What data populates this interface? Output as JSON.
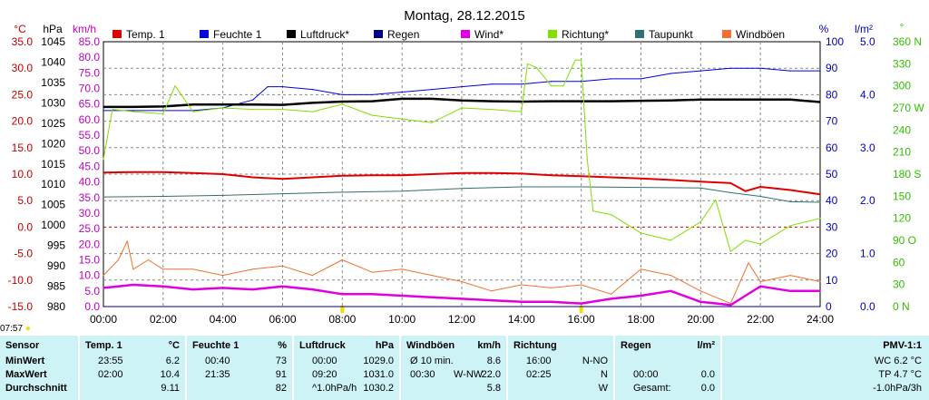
{
  "chart_data": {
    "type": "line",
    "title": "Montag, 28.12.2015",
    "x_ticks": [
      "00:00",
      "02:00",
      "04:00",
      "06:00",
      "08:00",
      "10:00",
      "12:00",
      "14:00",
      "16:00",
      "18:00",
      "20:00",
      "22:00",
      "24:00"
    ],
    "axes": {
      "temp": {
        "unit": "°C",
        "ticks": [
          "35.0",
          "30.0",
          "25.0",
          "20.0",
          "15.0",
          "10.0",
          "5.0",
          "0.0",
          "-5.0",
          "-10.0",
          "-15.0"
        ],
        "ylim": [
          -15,
          35
        ],
        "color": "#c00000"
      },
      "pressure": {
        "unit": "hPa",
        "ticks": [
          "1045",
          "1040",
          "1035",
          "1030",
          "1025",
          "1020",
          "1015",
          "1010",
          "1005",
          "1000",
          "995",
          "990",
          "985",
          "980"
        ],
        "ylim": [
          980,
          1045
        ],
        "color": "#000000"
      },
      "wind": {
        "unit": "km/h",
        "ticks": [
          "85.0",
          "80.0",
          "75.0",
          "70.0",
          "65.0",
          "60.0",
          "55.0",
          "50.0",
          "45.0",
          "40.0",
          "35.0",
          "30.0",
          "25.0",
          "20.0",
          "15.0",
          "10.0",
          "5.0",
          "0.0"
        ],
        "ylim": [
          0,
          85
        ],
        "color": "#c000c0"
      },
      "humidity": {
        "unit": "%",
        "ticks": [
          "100",
          "90",
          "80",
          "70",
          "60",
          "50",
          "40",
          "30",
          "20",
          "10",
          "0"
        ],
        "ylim": [
          0,
          100
        ],
        "color": "#0000c0"
      },
      "rain": {
        "unit": "l/m²",
        "ticks": [
          "5.0",
          "4.0",
          "3.0",
          "2.0",
          "1.0",
          "0.0"
        ],
        "ylim": [
          0,
          5
        ],
        "color": "#0000c0"
      },
      "direction": {
        "unit": "°",
        "ticks": [
          "360 N",
          "330",
          "300",
          "270 W",
          "240",
          "210",
          "180 S",
          "150",
          "120",
          "90 O",
          "60",
          "30",
          "0 N"
        ],
        "ylim": [
          0,
          360
        ],
        "color": "#30c000"
      }
    },
    "legend": [
      {
        "name": "Temp. 1",
        "color": "#e00000"
      },
      {
        "name": "Feuchte 1",
        "color": "#0000e0"
      },
      {
        "name": "Luftdruck*",
        "color": "#000000"
      },
      {
        "name": "Regen",
        "color": "#000080"
      },
      {
        "name": "Wind*",
        "color": "#e000e0"
      },
      {
        "name": "Richtung*",
        "color": "#80e000"
      },
      {
        "name": "Taupunkt",
        "color": "#307070"
      },
      {
        "name": "Windböen",
        "color": "#f07030"
      }
    ],
    "series": [
      {
        "name": "Temp. 1",
        "axis": "temp",
        "x": [
          0,
          1,
          2,
          3,
          4,
          5,
          6,
          7,
          8,
          9,
          10,
          11,
          12,
          13,
          14,
          15,
          16,
          17,
          18,
          19,
          20,
          21,
          21.5,
          22,
          23,
          24
        ],
        "y": [
          10.3,
          10.4,
          10.4,
          10.2,
          10.0,
          9.4,
          9.1,
          9.4,
          9.7,
          9.8,
          9.8,
          10.0,
          10.2,
          10.2,
          10.1,
          9.8,
          9.6,
          9.4,
          9.2,
          8.9,
          8.6,
          8.3,
          6.8,
          7.6,
          7.0,
          6.2
        ]
      },
      {
        "name": "Feuchte 1",
        "axis": "humidity",
        "x": [
          0,
          1,
          2,
          3,
          4,
          5,
          5.5,
          6,
          7,
          8,
          9,
          10,
          11,
          12,
          13,
          14,
          15,
          16,
          17,
          18,
          19,
          20,
          21,
          22,
          23,
          24
        ],
        "y": [
          74,
          74,
          74,
          74,
          75,
          78,
          83,
          83,
          82,
          80,
          80,
          81,
          82,
          83,
          84,
          84,
          85,
          85,
          86,
          86,
          88,
          89,
          90,
          90,
          89,
          89
        ]
      },
      {
        "name": "Luftdruck*",
        "axis": "pressure",
        "x": [
          0,
          1,
          2,
          3,
          4,
          5,
          6,
          7,
          8,
          9,
          10,
          11,
          12,
          13,
          14,
          15,
          16,
          17,
          18,
          19,
          20,
          21,
          22,
          23,
          24
        ],
        "y": [
          1029.0,
          1029.0,
          1029.1,
          1029.6,
          1029.6,
          1029.6,
          1029.5,
          1030.0,
          1030.3,
          1030.4,
          1031.0,
          1031.0,
          1030.6,
          1030.4,
          1030.3,
          1030.4,
          1030.4,
          1030.4,
          1030.5,
          1030.6,
          1030.8,
          1030.8,
          1030.8,
          1030.8,
          1030.2
        ]
      },
      {
        "name": "Wind*",
        "axis": "wind",
        "x": [
          0,
          1,
          2,
          3,
          4,
          5,
          6,
          7,
          8,
          9,
          10,
          11,
          12,
          13,
          14,
          15,
          16,
          17,
          18,
          19,
          20,
          21,
          21.5,
          22,
          23,
          24
        ],
        "y": [
          6.0,
          7.0,
          6.5,
          5.5,
          6.0,
          5.5,
          6.5,
          5.5,
          4.0,
          4.0,
          3.5,
          3.0,
          2.5,
          2.0,
          1.5,
          1.5,
          1.0,
          2.5,
          3.5,
          5.0,
          1.5,
          0.5,
          3.5,
          6.5,
          5.0,
          5.0
        ]
      },
      {
        "name": "Taupunkt",
        "axis": "temp",
        "x": [
          0,
          2,
          4,
          6,
          8,
          10,
          12,
          14,
          16,
          18,
          20,
          21,
          22,
          23,
          24
        ],
        "y": [
          5.7,
          5.8,
          6.0,
          6.3,
          6.6,
          6.8,
          7.3,
          7.6,
          7.6,
          7.5,
          7.4,
          6.5,
          5.8,
          4.8,
          4.7
        ]
      },
      {
        "name": "Richtung*",
        "axis": "direction",
        "x": [
          0,
          0.3,
          1,
          2,
          2.4,
          3,
          4,
          5,
          6,
          7,
          8,
          9,
          10,
          11,
          12,
          13,
          14,
          14.2,
          14.5,
          15,
          15.4,
          15.8,
          16,
          16.2,
          16.4,
          17,
          18,
          19,
          20,
          20.5,
          21,
          21.5,
          22,
          23,
          24
        ],
        "y": [
          200,
          268,
          265,
          262,
          300,
          265,
          270,
          268,
          268,
          265,
          275,
          260,
          255,
          250,
          270,
          268,
          265,
          330,
          325,
          300,
          300,
          335,
          335,
          200,
          130,
          125,
          100,
          90,
          115,
          145,
          75,
          90,
          85,
          110,
          120
        ]
      },
      {
        "name": "Windböen",
        "axis": "wind",
        "x": [
          0,
          0.5,
          0.8,
          1,
          1.5,
          2,
          3,
          4,
          5,
          6,
          7,
          8,
          9,
          10,
          11,
          12,
          13,
          14,
          15,
          16,
          17,
          18,
          19,
          20,
          21,
          21.6,
          22,
          23,
          24
        ],
        "y": [
          10,
          15,
          21,
          12,
          15,
          12,
          12,
          10,
          12,
          13,
          10,
          15,
          11,
          12,
          10,
          8,
          5,
          7,
          6,
          7,
          4,
          12,
          10,
          5,
          1,
          14,
          8,
          10,
          8
        ]
      },
      {
        "name": "Regen",
        "axis": "rain",
        "x": [
          0,
          24
        ],
        "y": [
          0,
          0
        ]
      }
    ]
  },
  "time_label": "07:57",
  "table": {
    "columns": [
      {
        "header": "Sensor",
        "header_unit": "",
        "rows": [
          [
            "MinWert",
            "",
            ""
          ],
          [
            "MaxWert",
            "",
            ""
          ],
          [
            "Durchschnitt",
            "",
            ""
          ]
        ]
      },
      {
        "header": "Temp. 1",
        "header_unit": "°C",
        "rows": [
          [
            "23:55",
            "",
            "6.2"
          ],
          [
            "02:00",
            "",
            "10.4"
          ],
          [
            "",
            "",
            "9.11"
          ]
        ]
      },
      {
        "header": "Feuchte 1",
        "header_unit": "%",
        "rows": [
          [
            "00:40",
            "",
            "73"
          ],
          [
            "21:35",
            "",
            "91"
          ],
          [
            "",
            "",
            "82"
          ]
        ]
      },
      {
        "header": "Luftdruck",
        "header_unit": "hPa",
        "rows": [
          [
            "00:00",
            "",
            "1029.0"
          ],
          [
            "09:20",
            "",
            "1031.0"
          ],
          [
            "^1.0hPa/h",
            "",
            "1030.2"
          ]
        ]
      },
      {
        "header": "Windböen",
        "header_unit": "km/h",
        "rows": [
          [
            "Ø 10 min.",
            "",
            "8.6"
          ],
          [
            "00:30",
            "W-NW",
            "22.0"
          ],
          [
            "",
            "",
            "5.8"
          ]
        ]
      },
      {
        "header": "Richtung",
        "header_unit": "",
        "rows": [
          [
            "16:00",
            "",
            "N-NO"
          ],
          [
            "02:25",
            "",
            "N"
          ],
          [
            "",
            "",
            "W"
          ]
        ]
      },
      {
        "header": "Regen",
        "header_unit": "l/m²",
        "rows": [
          [
            "",
            "",
            ""
          ],
          [
            "00:00",
            "",
            "0.0"
          ],
          [
            "Gesamt:",
            "",
            "0.0"
          ]
        ]
      },
      {
        "header": "PMV-1:1",
        "header_unit": "",
        "rows": [
          [
            "",
            "",
            "WC 6.2 °C"
          ],
          [
            "",
            "",
            "TP 4.7 °C"
          ],
          [
            "",
            "",
            "-1.0hPa/3h"
          ]
        ]
      }
    ]
  }
}
